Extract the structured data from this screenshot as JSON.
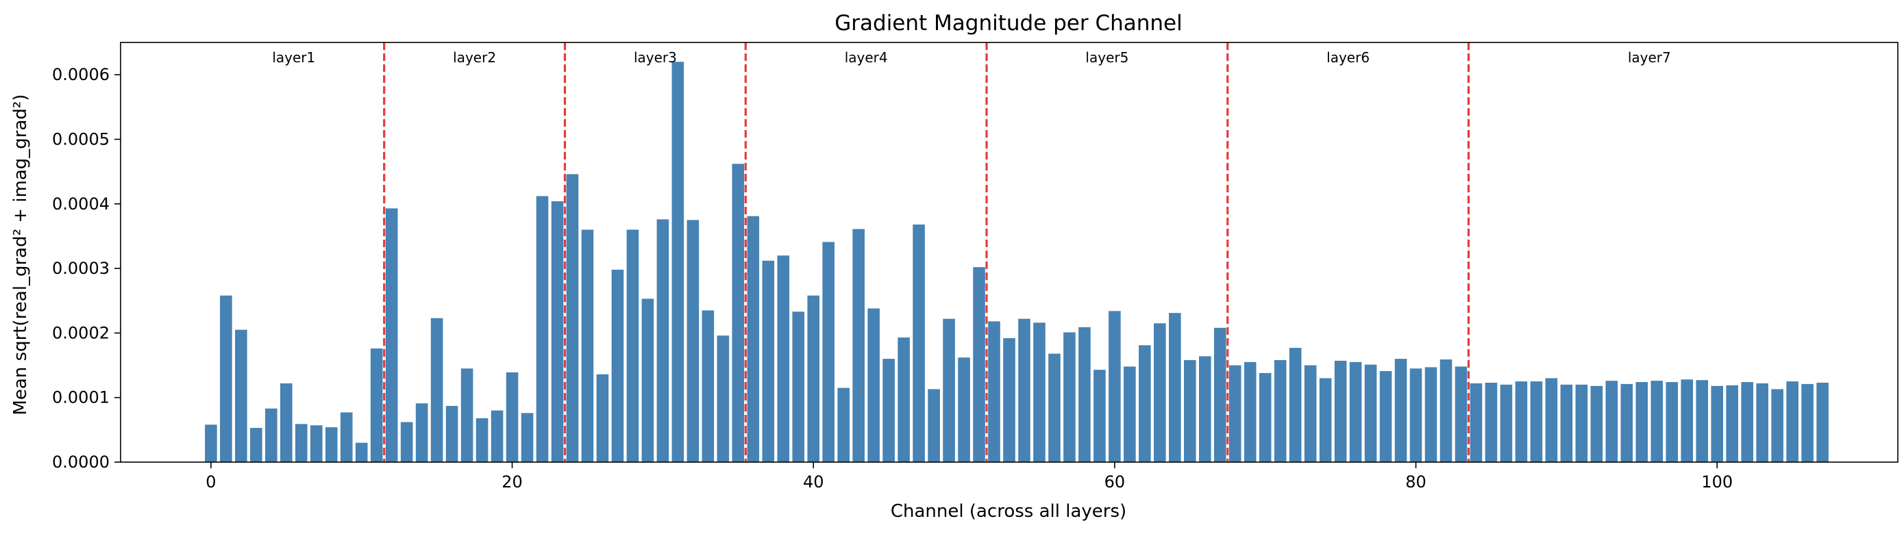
{
  "chart_data": {
    "type": "bar",
    "title": "Gradient Magnitude per Channel",
    "xlabel": "Channel (across all layers)",
    "ylabel": "Mean sqrt(real_grad² + imag_grad²)",
    "xlim": [
      -6,
      112
    ],
    "ylim": [
      0,
      0.00065
    ],
    "xticks": [
      0,
      20,
      40,
      60,
      80,
      100
    ],
    "xtick_labels": [
      "0",
      "20",
      "40",
      "60",
      "80",
      "100"
    ],
    "yticks": [
      0,
      0.0001,
      0.0002,
      0.0003,
      0.0004,
      0.0005,
      0.0006
    ],
    "ytick_labels": [
      "0.0000",
      "0.0001",
      "0.0002",
      "0.0003",
      "0.0004",
      "0.0005",
      "0.0006"
    ],
    "bar_color": "#4682b4",
    "divider_color": "#e8393a",
    "grid": false,
    "x": [
      0,
      1,
      2,
      3,
      4,
      5,
      6,
      7,
      8,
      9,
      10,
      11,
      12,
      13,
      14,
      15,
      16,
      17,
      18,
      19,
      20,
      21,
      22,
      23,
      24,
      25,
      26,
      27,
      28,
      29,
      30,
      31,
      32,
      33,
      34,
      35,
      36,
      37,
      38,
      39,
      40,
      41,
      42,
      43,
      44,
      45,
      46,
      47,
      48,
      49,
      50,
      51,
      52,
      53,
      54,
      55,
      56,
      57,
      58,
      59,
      60,
      61,
      62,
      63,
      64,
      65,
      66,
      67,
      68,
      69,
      70,
      71,
      72,
      73,
      74,
      75,
      76,
      77,
      78,
      79,
      80,
      81,
      82,
      83,
      84,
      85,
      86,
      87,
      88,
      89,
      90,
      91,
      92,
      93,
      94,
      95,
      96,
      97,
      98,
      99,
      100,
      101,
      102,
      103,
      104,
      105,
      106,
      107
    ],
    "values": [
      5.8e-05,
      0.000258,
      0.000205,
      5.3e-05,
      8.3e-05,
      0.000122,
      5.9e-05,
      5.7e-05,
      5.4e-05,
      7.7e-05,
      3e-05,
      0.000176,
      0.000393,
      6.2e-05,
      9.1e-05,
      0.000223,
      8.7e-05,
      0.000145,
      6.8e-05,
      8e-05,
      0.000139,
      7.6e-05,
      0.000412,
      0.000404,
      0.000446,
      0.00036,
      0.000136,
      0.000298,
      0.00036,
      0.000253,
      0.000376,
      0.00062,
      0.000375,
      0.000235,
      0.000196,
      0.000462,
      0.000381,
      0.000312,
      0.00032,
      0.000233,
      0.000258,
      0.000341,
      0.000115,
      0.000361,
      0.000238,
      0.00016,
      0.000193,
      0.000368,
      0.000113,
      0.000222,
      0.000162,
      0.000302,
      0.000218,
      0.000192,
      0.000222,
      0.000216,
      0.000168,
      0.000201,
      0.000209,
      0.000143,
      0.000234,
      0.000148,
      0.000181,
      0.000215,
      0.000231,
      0.000158,
      0.000164,
      0.000208,
      0.00015,
      0.000155,
      0.000138,
      0.000158,
      0.000177,
      0.00015,
      0.00013,
      0.000157,
      0.000155,
      0.000151,
      0.000141,
      0.00016,
      0.000145,
      0.000147,
      0.000159,
      0.000148,
      0.000122,
      0.000123,
      0.00012,
      0.000125,
      0.000125,
      0.00013,
      0.00012,
      0.00012,
      0.000118,
      0.000126,
      0.000121,
      0.000124,
      0.000126,
      0.000124,
      0.000128,
      0.000127,
      0.000118,
      0.000119,
      0.000124,
      0.000122,
      0.000113,
      0.000125,
      0.000121,
      0.000123
    ],
    "dividers": [
      11.5,
      23.5,
      35.5,
      51.5,
      67.5,
      83.5
    ],
    "layers": [
      {
        "label": "layer1",
        "center": 5.5
      },
      {
        "label": "layer2",
        "center": 17.5
      },
      {
        "label": "layer3",
        "center": 29.5
      },
      {
        "label": "layer4",
        "center": 43.5
      },
      {
        "label": "layer5",
        "center": 59.5
      },
      {
        "label": "layer6",
        "center": 75.5
      },
      {
        "label": "layer7",
        "center": 95.5
      }
    ]
  }
}
